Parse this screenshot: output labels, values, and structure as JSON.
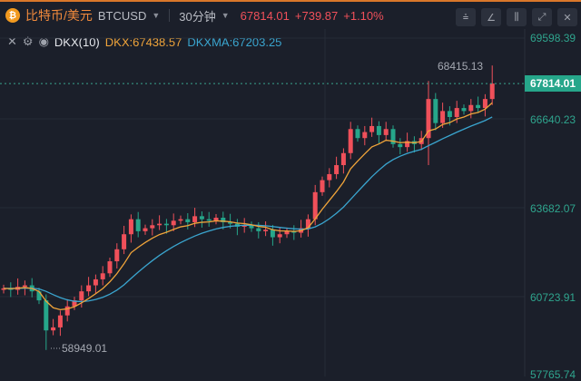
{
  "header": {
    "coin_icon": "bitcoin-icon",
    "pair": "比特币/美元",
    "symbol": "BTCUSD",
    "interval": "30分钟",
    "price": "67814.01",
    "change": "+739.87",
    "change_pct": "+1.10%"
  },
  "tools": [
    {
      "icon": "line-tool-icon",
      "glyph": "⩮"
    },
    {
      "icon": "draw-icon",
      "glyph": "∠"
    },
    {
      "icon": "candle-type-icon",
      "glyph": "⫼"
    },
    {
      "icon": "fullscreen-icon",
      "glyph": "⤢"
    },
    {
      "icon": "close-icon",
      "glyph": "✕"
    }
  ],
  "indicator": {
    "name": "DKX(10)",
    "dkx": "DKX:67438.57",
    "dkxma": "DKXMA:67203.25"
  },
  "colors": {
    "up": "#f0505a",
    "down": "#26a68a",
    "dkx": "#f0a43a",
    "dkxma": "#3aa5cf",
    "bg": "#1b1f2a"
  },
  "chart_data": {
    "type": "candlestick",
    "y_ticks": [
      "69598.39",
      "66640.23",
      "63682.07",
      "60723.91",
      "57765.74"
    ],
    "ylim": [
      57765.74,
      69598.39
    ],
    "current_price": "67814.01",
    "high_label": "68415.13",
    "low_label": "58949.01",
    "closes": [
      61000,
      60950,
      61050,
      61100,
      60900,
      60600,
      59600,
      59700,
      60100,
      60400,
      60600,
      60900,
      61100,
      61300,
      61500,
      61900,
      62300,
      62800,
      63300,
      62900,
      63000,
      63100,
      63150,
      63100,
      63250,
      63300,
      63200,
      63400,
      63300,
      63250,
      63350,
      63200,
      63150,
      63050,
      63100,
      63000,
      62900,
      62950,
      62700,
      62800,
      62900,
      62850,
      63000,
      63300,
      64200,
      64600,
      64800,
      65100,
      65500,
      66300,
      66000,
      66200,
      66400,
      66100,
      66300,
      65800,
      65700,
      65900,
      65800,
      66000,
      67300,
      66500,
      66900,
      66700,
      67000,
      66900,
      67100,
      67000,
      67300,
      67814.01
    ],
    "high": 68415.13,
    "low": 58949.01
  }
}
